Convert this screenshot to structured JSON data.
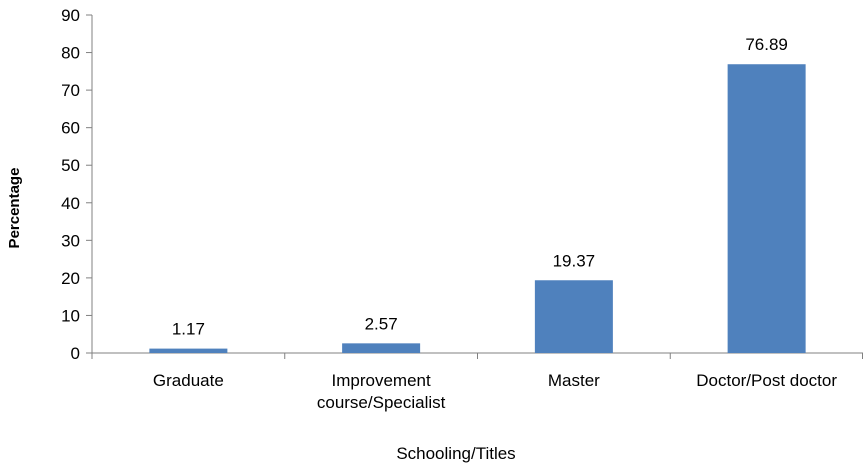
{
  "chart_data": {
    "type": "bar",
    "categories": [
      [
        "Graduate"
      ],
      [
        "Improvement",
        "course/Specialist"
      ],
      [
        "Master"
      ],
      [
        "Doctor/Post doctor"
      ]
    ],
    "values": [
      1.17,
      2.57,
      19.37,
      76.89
    ],
    "value_labels": [
      "1.17",
      "2.57",
      "19.37",
      "76.89"
    ],
    "title": "",
    "xlabel": "Schooling/Titles",
    "ylabel": "Percentage",
    "ylim": [
      0,
      90
    ],
    "yticks": [
      0,
      10,
      20,
      30,
      40,
      50,
      60,
      70,
      80,
      90
    ],
    "grid": false,
    "legend": "none",
    "bar_color": "#4f81bd",
    "axis_color": "#808080",
    "text_color": "#000000"
  }
}
